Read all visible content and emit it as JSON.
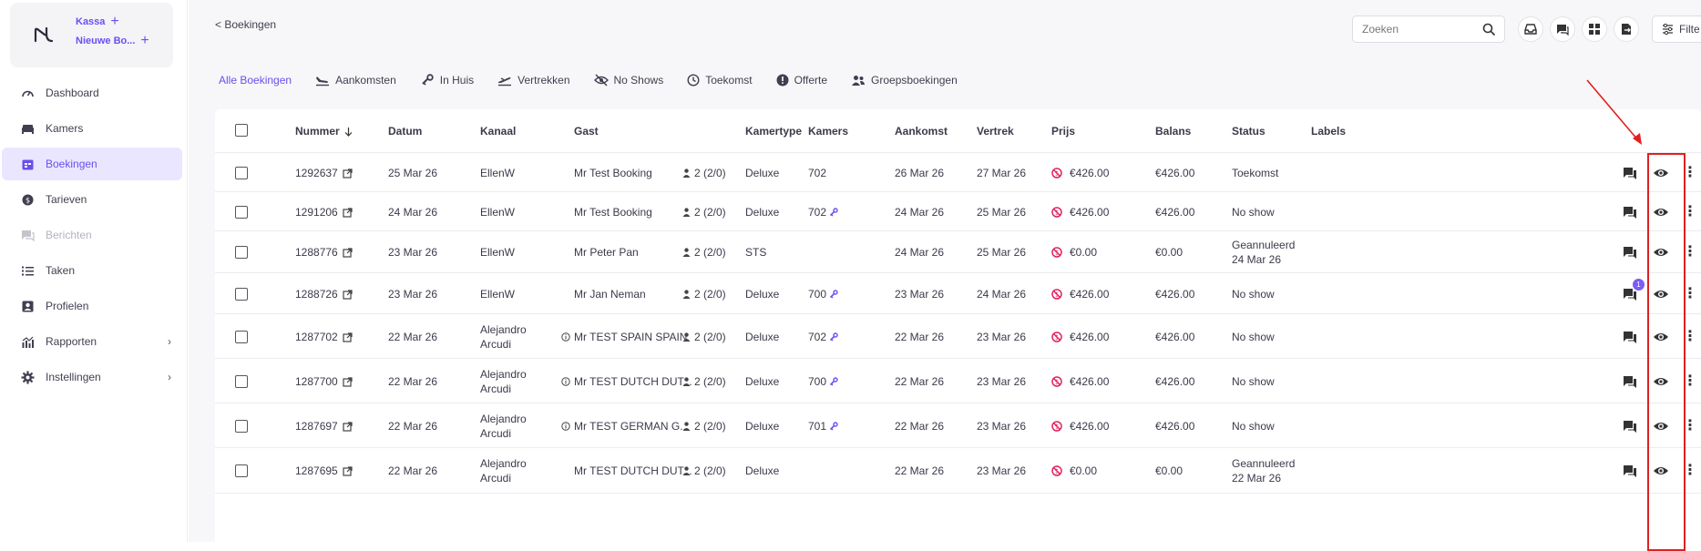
{
  "sidebar": {
    "brand_actions": [
      "Kassa",
      "Nieuwe Bo..."
    ],
    "items": [
      {
        "label": "Dashboard",
        "icon": "dashboard-icon"
      },
      {
        "label": "Kamers",
        "icon": "bed-icon"
      },
      {
        "label": "Boekingen",
        "icon": "calendar-icon",
        "active": true
      },
      {
        "label": "Tarieven",
        "icon": "coin-icon"
      },
      {
        "label": "Berichten",
        "icon": "chat-icon",
        "disabled": true
      },
      {
        "label": "Taken",
        "icon": "list-icon"
      },
      {
        "label": "Profielen",
        "icon": "profile-icon"
      },
      {
        "label": "Rapporten",
        "icon": "chart-icon",
        "expandable": true
      },
      {
        "label": "Instellingen",
        "icon": "gear-icon",
        "expandable": true
      }
    ]
  },
  "header": {
    "back": "< Boekingen",
    "search_placeholder": "Zoeken",
    "filter_label": "Filte"
  },
  "tabs": [
    {
      "label": "Alle Boekingen",
      "active": true
    },
    {
      "label": "Aankomsten",
      "icon": "plane-landing-icon"
    },
    {
      "label": "In Huis",
      "icon": "key-icon"
    },
    {
      "label": "Vertrekken",
      "icon": "plane-departure-icon"
    },
    {
      "label": "No Shows",
      "icon": "eye-off-icon"
    },
    {
      "label": "Toekomst",
      "icon": "clock-icon"
    },
    {
      "label": "Offerte",
      "icon": "alert-icon"
    },
    {
      "label": "Groepsboekingen",
      "icon": "group-icon"
    }
  ],
  "table": {
    "columns": [
      "Nummer",
      "Datum",
      "Kanaal",
      "Gast",
      "Kamertype",
      "Kamers",
      "Aankomst",
      "Vertrek",
      "Prijs",
      "Balans",
      "Status",
      "Labels"
    ],
    "rows": [
      {
        "nummer": "1292637",
        "datum": "25 Mar 26",
        "kanaal": "EllenW",
        "gast": "Mr Test Booking",
        "guest_info": false,
        "personen": "2 (2/0)",
        "kamertype": "Deluxe",
        "kamers": "702",
        "key": false,
        "aankomst": "26 Mar 26",
        "vertrek": "27 Mar 26",
        "prijs": "€426.00",
        "balans": "€426.00",
        "status": "Toekomst",
        "status2": "",
        "msg_badge": ""
      },
      {
        "nummer": "1291206",
        "datum": "24 Mar 26",
        "kanaal": "EllenW",
        "gast": "Mr Test Booking",
        "guest_info": false,
        "personen": "2 (2/0)",
        "kamertype": "Deluxe",
        "kamers": "702",
        "key": true,
        "aankomst": "24 Mar 26",
        "vertrek": "25 Mar 26",
        "prijs": "€426.00",
        "balans": "€426.00",
        "status": "No show",
        "status2": "",
        "msg_badge": ""
      },
      {
        "nummer": "1288776",
        "datum": "23 Mar 26",
        "kanaal": "EllenW",
        "gast": "Mr Peter Pan",
        "guest_info": false,
        "personen": "2 (2/0)",
        "kamertype": "STS",
        "kamers": "",
        "key": false,
        "aankomst": "24 Mar 26",
        "vertrek": "25 Mar 26",
        "prijs": "€0.00",
        "balans": "€0.00",
        "status": "Geannuleerd",
        "status2": "24 Mar 26",
        "msg_badge": ""
      },
      {
        "nummer": "1288726",
        "datum": "23 Mar 26",
        "kanaal": "EllenW",
        "gast": "Mr Jan Neman",
        "guest_info": false,
        "personen": "2 (2/0)",
        "kamertype": "Deluxe",
        "kamers": "700",
        "key": true,
        "aankomst": "23 Mar 26",
        "vertrek": "24 Mar 26",
        "prijs": "€426.00",
        "balans": "€426.00",
        "status": "No show",
        "status2": "",
        "msg_badge": "1"
      },
      {
        "nummer": "1287702",
        "datum": "22 Mar 26",
        "kanaal": "Alejandro",
        "kanaal2": "Arcudi",
        "gast": "Mr TEST SPAIN SPAIN",
        "guest_info": true,
        "personen": "2 (2/0)",
        "kamertype": "Deluxe",
        "kamers": "702",
        "key": true,
        "aankomst": "22 Mar 26",
        "vertrek": "23 Mar 26",
        "prijs": "€426.00",
        "balans": "€426.00",
        "status": "No show",
        "status2": "",
        "msg_badge": ""
      },
      {
        "nummer": "1287700",
        "datum": "22 Mar 26",
        "kanaal": "Alejandro",
        "kanaal2": "Arcudi",
        "gast": "Mr TEST DUTCH DUT...",
        "guest_info": true,
        "personen": "2 (2/0)",
        "kamertype": "Deluxe",
        "kamers": "700",
        "key": true,
        "aankomst": "22 Mar 26",
        "vertrek": "23 Mar 26",
        "prijs": "€426.00",
        "balans": "€426.00",
        "status": "No show",
        "status2": "",
        "msg_badge": ""
      },
      {
        "nummer": "1287697",
        "datum": "22 Mar 26",
        "kanaal": "Alejandro",
        "kanaal2": "Arcudi",
        "gast": "Mr TEST GERMAN G...",
        "guest_info": true,
        "personen": "2 (2/0)",
        "kamertype": "Deluxe",
        "kamers": "701",
        "key": true,
        "aankomst": "22 Mar 26",
        "vertrek": "23 Mar 26",
        "prijs": "€426.00",
        "balans": "€426.00",
        "status": "No show",
        "status2": "",
        "msg_badge": ""
      },
      {
        "nummer": "1287695",
        "datum": "22 Mar 26",
        "kanaal": "Alejandro",
        "kanaal2": "Arcudi",
        "gast": "Mr TEST DUTCH DUT...",
        "guest_info": false,
        "personen": "2 (2/0)",
        "kamertype": "Deluxe",
        "kamers": "",
        "key": false,
        "aankomst": "22 Mar 26",
        "vertrek": "23 Mar 26",
        "prijs": "€0.00",
        "balans": "€0.00",
        "status": "Geannuleerd",
        "status2": "22 Mar 26",
        "msg_badge": ""
      }
    ]
  },
  "colors": {
    "accent": "#6a4ff0",
    "annotation": "#e02020",
    "price_icon": "#e0245e"
  }
}
